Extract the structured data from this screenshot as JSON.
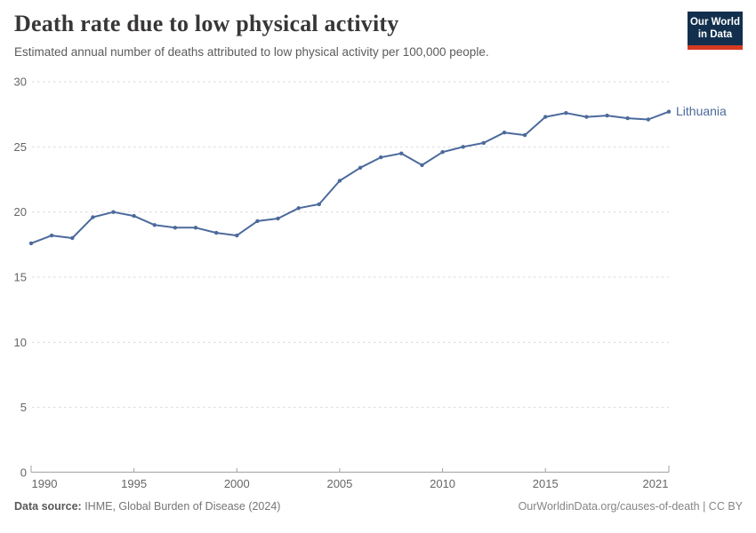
{
  "chart_data": {
    "type": "line",
    "title": "Death rate due to low physical activity",
    "subtitle": "Estimated annual number of deaths attributed to low physical activity per 100,000 people.",
    "xlabel": "",
    "ylabel": "",
    "x": [
      1990,
      1991,
      1992,
      1993,
      1994,
      1995,
      1996,
      1997,
      1998,
      1999,
      2000,
      2001,
      2002,
      2003,
      2004,
      2005,
      2006,
      2007,
      2008,
      2009,
      2010,
      2011,
      2012,
      2013,
      2014,
      2015,
      2016,
      2017,
      2018,
      2019,
      2020,
      2021
    ],
    "series": [
      {
        "name": "Lithuania",
        "color": "#4c6a9c",
        "values": [
          17.6,
          18.2,
          18.0,
          19.6,
          20.0,
          19.7,
          19.0,
          18.8,
          18.8,
          18.4,
          18.2,
          19.3,
          19.5,
          20.3,
          20.6,
          22.4,
          23.4,
          24.2,
          24.5,
          23.6,
          24.6,
          25.0,
          25.3,
          26.1,
          25.9,
          27.3,
          27.6,
          27.3,
          27.4,
          27.2,
          27.1,
          27.7
        ]
      }
    ],
    "xlim": [
      1990,
      2021
    ],
    "ylim": [
      0,
      30
    ],
    "xticks": [
      1990,
      1995,
      2000,
      2005,
      2010,
      2015,
      2021
    ],
    "yticks": [
      0,
      5,
      10,
      15,
      20,
      25,
      30
    ],
    "grid": "horizontal-dashed",
    "legend_position": "end-of-line-label"
  },
  "header": {
    "logo": {
      "line1": "Our World",
      "line2": "in Data"
    }
  },
  "footer": {
    "source_label": "Data source:",
    "source_value": " IHME, Global Burden of Disease (2024)",
    "link": "OurWorldinData.org/causes-of-death | CC BY"
  },
  "colors": {
    "line": "#4c6a9c",
    "entity_label": "#4c6a9c",
    "gridline": "#dadada",
    "axis": "#a1a1a1",
    "tick_label": "#666666",
    "title": "#383636",
    "subtitle": "#5b5b5b",
    "logo_bg": "#12304d",
    "logo_bar": "#d63b22"
  }
}
